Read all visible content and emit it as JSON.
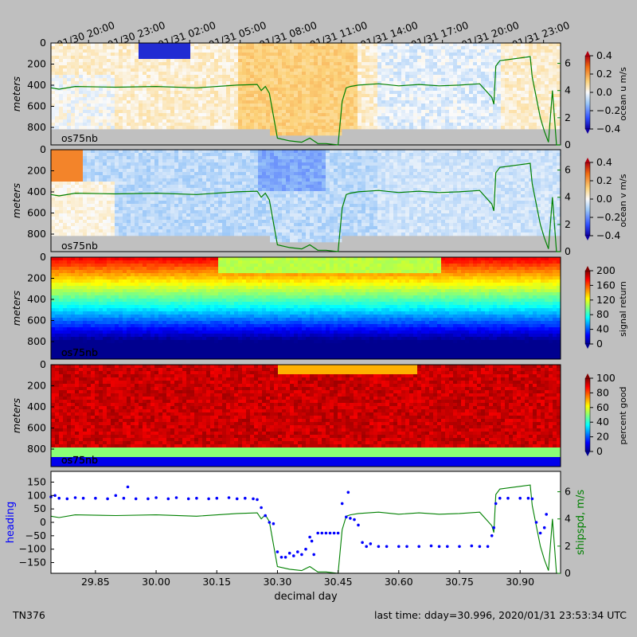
{
  "chart_data": {
    "type": "heatmap",
    "time_ticks": [
      "01/30 20:00",
      "01/30 23:00",
      "01/31 02:00",
      "01/31 05:00",
      "01/31 08:00",
      "01/31 11:00",
      "01/31 14:00",
      "01/31 17:00",
      "01/31 20:00",
      "01/31 23:00"
    ],
    "time_tick_days": [
      29.833,
      29.958,
      30.083,
      30.208,
      30.333,
      30.458,
      30.583,
      30.708,
      30.833,
      30.958
    ],
    "x_range": [
      29.74,
      31.0
    ],
    "xlabel": "decimal day",
    "xticks": [
      29.85,
      30.0,
      30.15,
      30.3,
      30.45,
      30.6,
      30.75,
      30.9
    ],
    "xtick_labels": [
      "29.85",
      "30.00",
      "30.15",
      "30.30",
      "30.45",
      "30.60",
      "30.75",
      "30.90"
    ],
    "depth_ticks": [
      "0",
      "200",
      "400",
      "600",
      "800"
    ],
    "depth_ticks_b": [
      "0",
      "200",
      "400",
      "600",
      "800"
    ],
    "depth_ticks_c": [
      "0",
      "200",
      "400",
      "600",
      "800"
    ],
    "depth_ticks_d": [
      "0",
      "200",
      "400",
      "600",
      "800"
    ],
    "ylabel": "meters",
    "instrument_label": "os75nb",
    "panels": [
      {
        "name": "ocean u",
        "colorbar_label": "ocean u m/s",
        "cb_ticks": [
          "0.4",
          "0.2",
          "0.0",
          "−0.2",
          "−0.4"
        ],
        "range": [
          -0.4,
          0.4
        ],
        "overlay": "shipspd",
        "overlay_ticks": [
          "6",
          "4",
          "2",
          "0"
        ]
      },
      {
        "name": "ocean v",
        "colorbar_label": "ocean v m/s",
        "cb_ticks": [
          "0.4",
          "0.2",
          "0.0",
          "−0.2",
          "−0.4"
        ],
        "range": [
          -0.4,
          0.4
        ],
        "overlay": "shipspd",
        "overlay_ticks": [
          "6",
          "4",
          "2",
          "0"
        ]
      },
      {
        "name": "signal return",
        "colorbar_label": "signal return",
        "cb_ticks": [
          "200",
          "160",
          "120",
          "80",
          "40",
          "0"
        ],
        "range": [
          0,
          200
        ]
      },
      {
        "name": "percent good",
        "colorbar_label": "percent good",
        "cb_ticks": [
          "100",
          "80",
          "60",
          "40",
          "20",
          "0"
        ],
        "range": [
          0,
          100
        ]
      }
    ],
    "heading_panel": {
      "ylabel": "heading",
      "y2label": "shipspd, m/s",
      "yticks": [
        "150",
        "100",
        "50",
        "0",
        "−50",
        "−100",
        "−150"
      ],
      "y2ticks": [
        "6",
        "4",
        "2",
        "0"
      ],
      "ylim": [
        -190,
        190
      ],
      "y2lim": [
        0,
        7.5
      ]
    },
    "shipspd": {
      "x": [
        29.74,
        29.76,
        29.8,
        29.9,
        30.0,
        30.1,
        30.2,
        30.25,
        30.26,
        30.27,
        30.28,
        30.3,
        30.33,
        30.36,
        30.38,
        30.4,
        30.42,
        30.45,
        30.46,
        30.47,
        30.48,
        30.5,
        30.55,
        30.6,
        30.65,
        30.7,
        30.75,
        30.8,
        30.83,
        30.835,
        30.84,
        30.85,
        30.9,
        30.925,
        30.93,
        30.95,
        30.96,
        30.97,
        30.98,
        30.99,
        31.0
      ],
      "y": [
        4.2,
        4.1,
        4.3,
        4.25,
        4.3,
        4.2,
        4.4,
        4.45,
        4.0,
        4.3,
        3.8,
        0.5,
        0.3,
        0.2,
        0.5,
        0.1,
        0.1,
        0.0,
        3.2,
        4.2,
        4.3,
        4.4,
        4.5,
        4.35,
        4.45,
        4.35,
        4.4,
        4.5,
        3.5,
        3.0,
        5.8,
        6.2,
        6.4,
        6.5,
        5.0,
        2.0,
        1.0,
        0.2,
        4.0,
        0.0,
        0.0
      ]
    },
    "heading": {
      "x": [
        29.74,
        29.75,
        29.76,
        29.78,
        29.8,
        29.82,
        29.85,
        29.88,
        29.9,
        29.92,
        29.93,
        29.95,
        29.98,
        30.0,
        30.03,
        30.05,
        30.08,
        30.1,
        30.13,
        30.15,
        30.18,
        30.2,
        30.22,
        30.24,
        30.25,
        30.26,
        30.27,
        30.28,
        30.29,
        30.3,
        30.31,
        30.32,
        30.33,
        30.34,
        30.35,
        30.36,
        30.37,
        30.38,
        30.385,
        30.39,
        30.4,
        30.41,
        30.42,
        30.43,
        30.44,
        30.45,
        30.46,
        30.47,
        30.475,
        30.48,
        30.49,
        30.5,
        30.51,
        30.52,
        30.53,
        30.55,
        30.57,
        30.6,
        30.62,
        30.65,
        30.68,
        30.7,
        30.72,
        30.75,
        30.78,
        30.8,
        30.82,
        30.83,
        30.835,
        30.84,
        30.85,
        30.87,
        30.9,
        30.92,
        30.93,
        30.94,
        30.95,
        30.96,
        30.965
      ],
      "y": [
        95,
        100,
        90,
        88,
        92,
        90,
        90,
        88,
        100,
        90,
        132,
        88,
        88,
        92,
        88,
        92,
        88,
        90,
        88,
        90,
        92,
        88,
        90,
        88,
        85,
        55,
        25,
        0,
        -5,
        -110,
        -130,
        -130,
        -115,
        -125,
        -110,
        -120,
        -100,
        -55,
        -70,
        -120,
        -40,
        -40,
        -40,
        -40,
        -40,
        -40,
        70,
        20,
        112,
        15,
        10,
        -10,
        -75,
        -90,
        -80,
        -90,
        -90,
        -90,
        -90,
        -90,
        -88,
        -90,
        -90,
        -90,
        -88,
        -90,
        -90,
        -50,
        -20,
        70,
        90,
        90,
        90,
        90,
        88,
        0,
        -40,
        -20,
        30
      ]
    },
    "hover_fraction": 0
  },
  "footer": {
    "cruise": "TN376",
    "last_time": "last time: dday=30.996,  2020/01/31 23:53:34 UTC"
  },
  "colors": {
    "speed_line": "#008000",
    "heading_points": "#0000ff",
    "missing": "#c0c0c0"
  }
}
